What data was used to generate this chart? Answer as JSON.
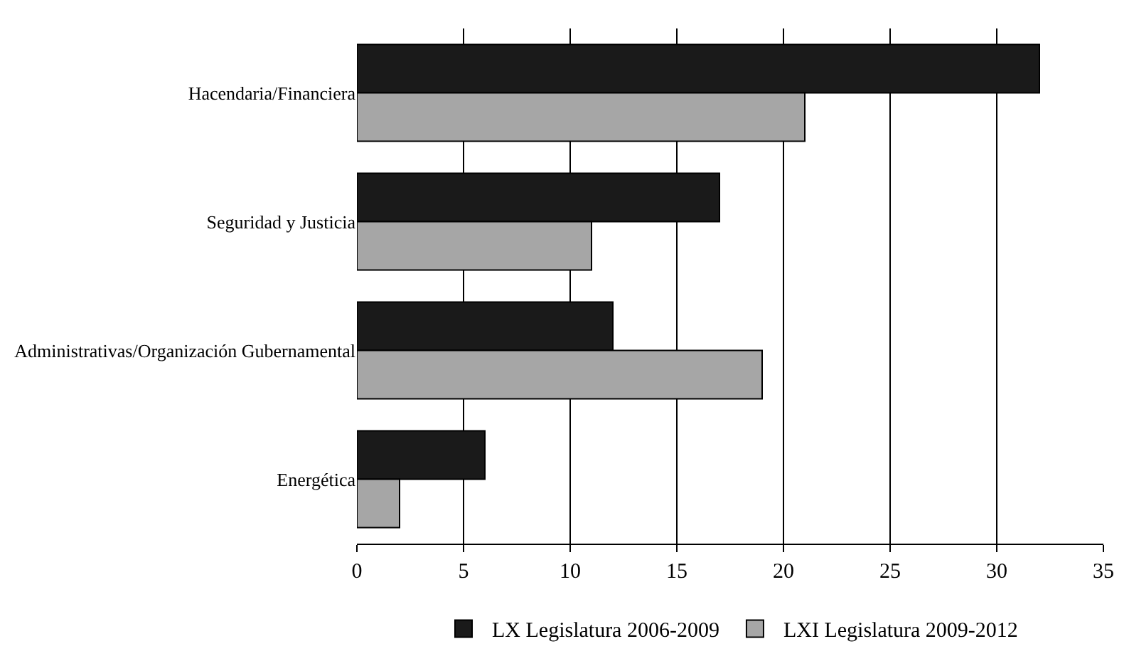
{
  "chart_data": {
    "type": "bar",
    "orientation": "horizontal",
    "categories": [
      "Hacendaria/Financiera",
      "Seguridad y Justicia",
      "Administrativas/Organización Gubernamental",
      "Energética"
    ],
    "series": [
      {
        "name": "LX Legislatura 2006-2009",
        "color": "#1a1a1a",
        "values": [
          32,
          17,
          12,
          6
        ]
      },
      {
        "name": "LXI Legislatura 2009-2012",
        "color": "#a6a6a6",
        "values": [
          21,
          11,
          19,
          2
        ]
      }
    ],
    "xlim": [
      0,
      35
    ],
    "xticks": [
      0,
      5,
      10,
      15,
      20,
      25,
      30,
      35
    ],
    "grid": "x",
    "legend": "bottom"
  }
}
